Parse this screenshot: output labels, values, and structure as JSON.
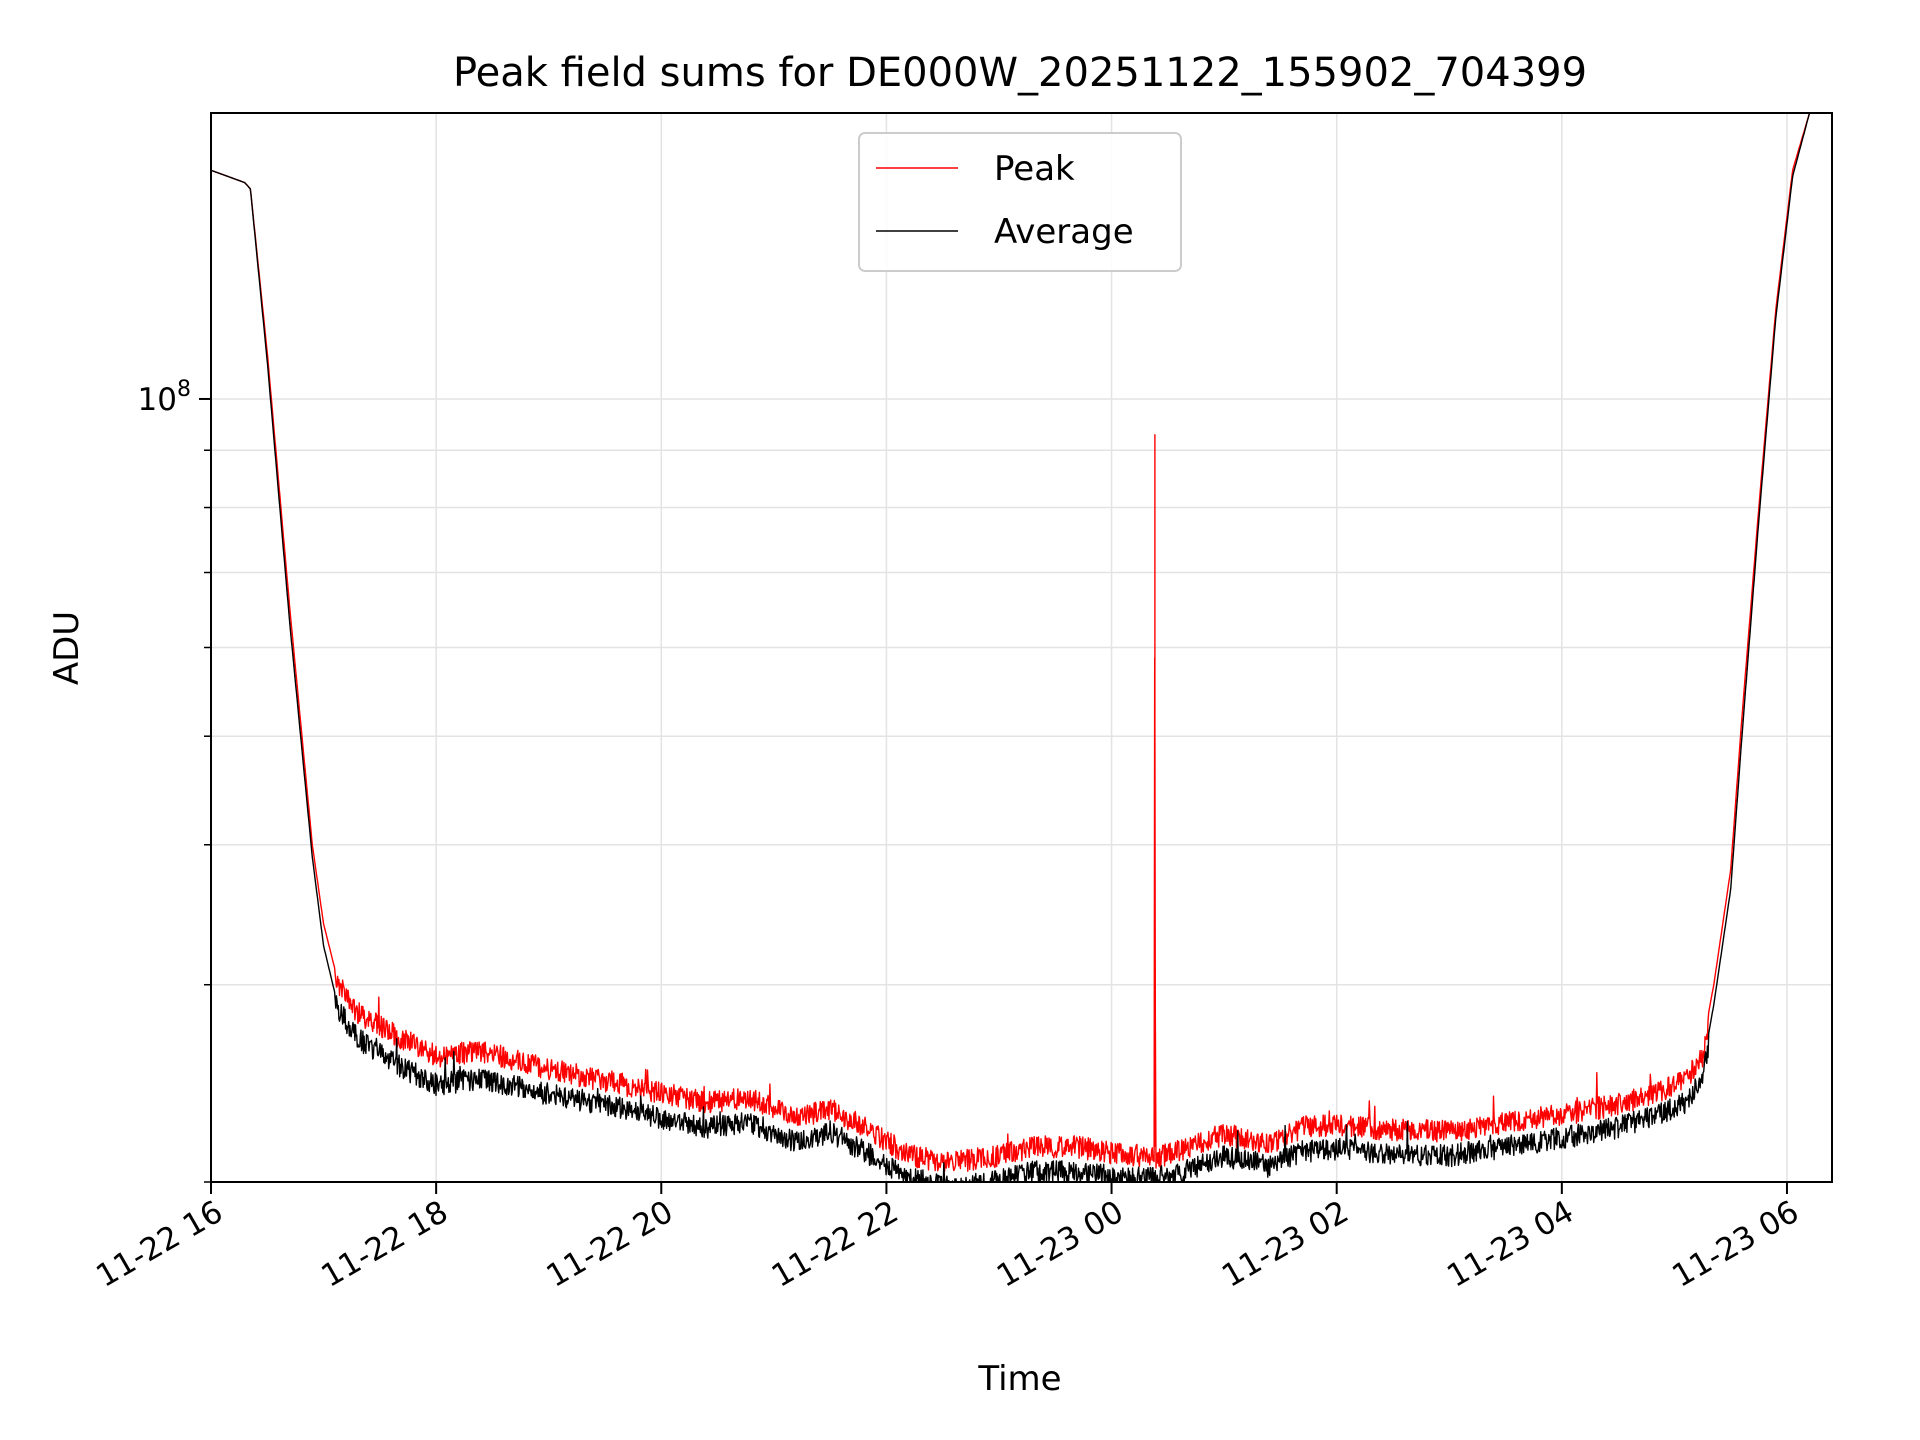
{
  "chart_data": {
    "type": "line",
    "title": "Peak field sums for DE000W_20251122_155902_704399",
    "xlabel": "Time",
    "ylabel": "ADU",
    "yscale": "log",
    "grid": true,
    "legend_position": "top-center",
    "x_unit": "hours since 11-22 16:00",
    "xlim": [
      0,
      14.4
    ],
    "ylim": [
      20000000,
      180000000
    ],
    "x_ticks": [
      {
        "value": 0,
        "label": "11-22 16"
      },
      {
        "value": 2,
        "label": "11-22 18"
      },
      {
        "value": 4,
        "label": "11-22 20"
      },
      {
        "value": 6,
        "label": "11-22 22"
      },
      {
        "value": 8,
        "label": "11-23 00"
      },
      {
        "value": 10,
        "label": "11-23 02"
      },
      {
        "value": 12,
        "label": "11-23 04"
      },
      {
        "value": 14,
        "label": "11-23 06"
      }
    ],
    "y_ticks": [
      {
        "value": 100000000,
        "base": "10",
        "exponent": "8"
      }
    ],
    "y_minor_ticks": [
      20000000,
      30000000,
      40000000,
      50000000,
      60000000,
      70000000,
      80000000,
      90000000
    ],
    "series": [
      {
        "name": "Peak",
        "color": "#ff0000",
        "x": [
          0,
          0.15,
          0.3,
          0.35,
          0.5,
          0.7,
          0.9,
          1.0,
          1.1,
          1.3,
          1.6,
          2.0,
          2.4,
          3.0,
          3.5,
          4.0,
          4.4,
          4.8,
          5.2,
          5.5,
          5.9,
          6.2,
          6.6,
          7.0,
          7.3,
          7.7,
          8.0,
          8.3,
          8.38,
          8.385,
          8.39,
          8.6,
          9.0,
          9.4,
          9.7,
          10.0,
          10.4,
          11.0,
          11.5,
          12.0,
          12.5,
          12.9,
          13.1,
          13.25,
          13.35,
          13.5,
          13.6,
          13.75,
          13.9,
          14.05,
          14.2
        ],
        "values": [
          160000000,
          158000000,
          156000000,
          154000000,
          110000000,
          65000000,
          40000000,
          34000000,
          31000000,
          29000000,
          27800000,
          26500000,
          26800000,
          25800000,
          25200000,
          24600000,
          24100000,
          24300000,
          23300000,
          23800000,
          22600000,
          21600000,
          21300000,
          21600000,
          22000000,
          22000000,
          21700000,
          21600000,
          21500000,
          93000000,
          21500000,
          21800000,
          22600000,
          22100000,
          22900000,
          23000000,
          22800000,
          22700000,
          23100000,
          23500000,
          24000000,
          24700000,
          25200000,
          26500000,
          30000000,
          38000000,
          52000000,
          80000000,
          120000000,
          160000000,
          180000000
        ]
      },
      {
        "name": "Average",
        "color": "#000000",
        "x": [
          0,
          0.15,
          0.3,
          0.35,
          0.5,
          0.7,
          0.9,
          1.0,
          1.1,
          1.3,
          1.6,
          2.0,
          2.4,
          3.0,
          3.5,
          4.0,
          4.4,
          4.8,
          5.2,
          5.5,
          5.9,
          6.2,
          6.6,
          7.0,
          7.3,
          7.7,
          8.0,
          8.3,
          8.6,
          9.0,
          9.4,
          9.7,
          10.0,
          10.4,
          11.0,
          11.5,
          12.0,
          12.5,
          12.9,
          13.1,
          13.25,
          13.35,
          13.5,
          13.6,
          13.75,
          13.9,
          14.05,
          14.2
        ],
        "values": [
          160000000,
          158000000,
          156000000,
          154000000,
          108000000,
          63000000,
          39000000,
          32500000,
          29500000,
          27500000,
          26200000,
          25000000,
          25300000,
          24500000,
          24000000,
          23300000,
          22900000,
          23100000,
          22200000,
          22700000,
          21500000,
          20600000,
          20300000,
          20500000,
          20900000,
          20900000,
          20700000,
          20600000,
          20800000,
          21600000,
          21100000,
          21800000,
          21900000,
          21700000,
          21600000,
          22000000,
          22400000,
          22900000,
          23600000,
          24100000,
          25300000,
          28800000,
          36500000,
          50000000,
          78000000,
          118000000,
          158000000,
          180000000
        ]
      }
    ],
    "legend": [
      {
        "label": "Peak",
        "color": "#ff0000"
      },
      {
        "label": "Average",
        "color": "#000000"
      }
    ]
  }
}
